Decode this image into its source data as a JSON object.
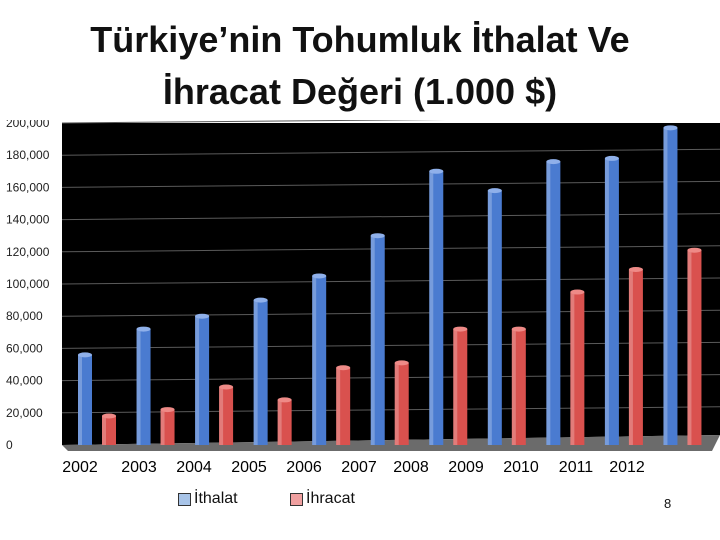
{
  "title": {
    "line1": "Türkiye’nin Tohumluk İthalat Ve",
    "line2": "İhracat Değeri (1.000 $)"
  },
  "page_number": "8",
  "colors": {
    "ithalat": "#4a7bd0",
    "ihracat": "#d9514e",
    "background": "#000000",
    "grid": "#5a5a5a"
  },
  "chart_data": {
    "type": "bar",
    "title": "Türkiye’nin Tohumluk İthalat Ve İhracat Değeri (1.000 $)",
    "categories": [
      "2002",
      "2003",
      "2004",
      "2005",
      "2006",
      "2007",
      "2008",
      "2009",
      "2010",
      "2011",
      "2012"
    ],
    "series": [
      {
        "name": "İthalat",
        "values": [
          56000,
          72000,
          80000,
          90000,
          105000,
          130000,
          170000,
          158000,
          176000,
          178000,
          197000
        ]
      },
      {
        "name": "İhracat",
        "values": [
          18000,
          22000,
          36000,
          28000,
          48000,
          51000,
          72000,
          72000,
          95000,
          109000,
          121000
        ]
      }
    ],
    "yticks": [
      "200,000",
      "180,000",
      "160,000",
      "140,000",
      "120,000",
      "100,000",
      "80,000",
      "60,000",
      "40,000",
      "20,000",
      "0"
    ],
    "ylim": [
      0,
      200000
    ],
    "grid": true,
    "legend": "bottom"
  }
}
